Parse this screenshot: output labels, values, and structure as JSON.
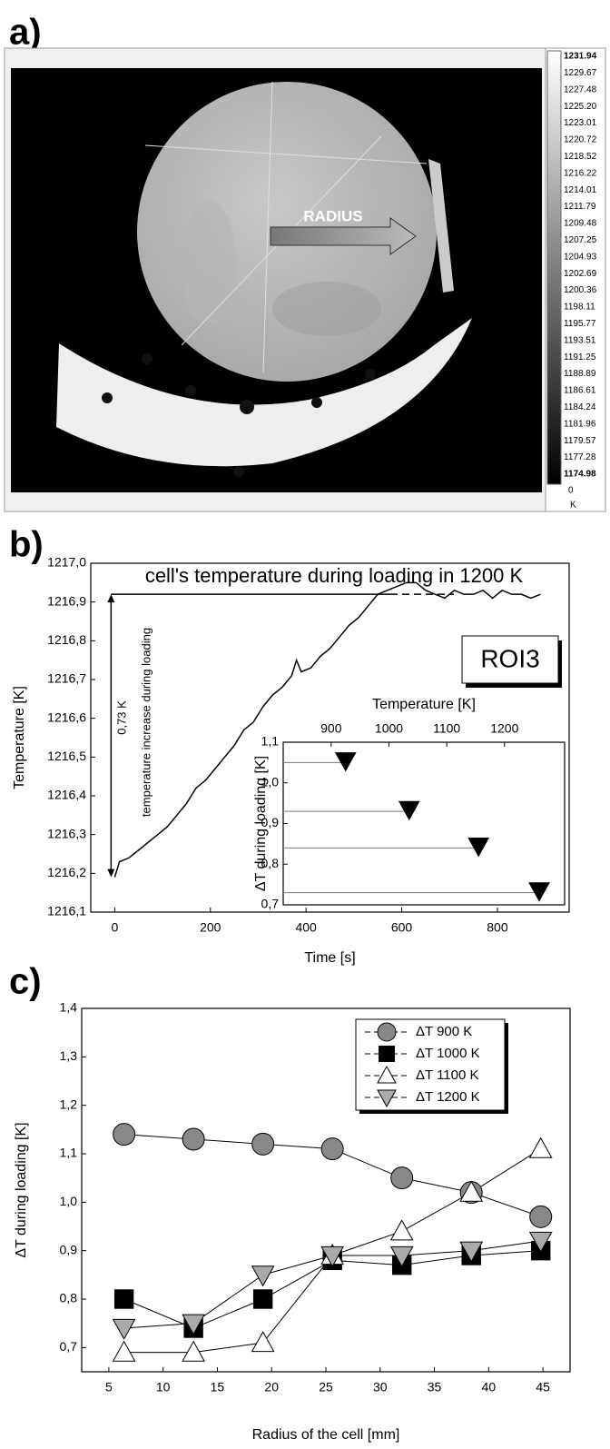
{
  "panel_labels": [
    "a)",
    "b)",
    "c)"
  ],
  "image": {
    "annotation": "RADIUS",
    "colorbar": {
      "labels": [
        "1231.94",
        "1229.67",
        "1227.48",
        "1225.20",
        "1223.01",
        "1220.72",
        "1218.52",
        "1216.22",
        "1214.01",
        "1211.79",
        "1209.48",
        "1207.25",
        "1204.93",
        "1202.69",
        "1200.36",
        "1198.11",
        "1195.77",
        "1193.51",
        "1191.25",
        "1188.89",
        "1186.61",
        "1184.24",
        "1181.96",
        "1179.57",
        "1177.28",
        "1174.98"
      ],
      "extra": "0",
      "unit": "K"
    }
  },
  "chart_data": [
    {
      "type": "line",
      "title": "cell's temperature during loading in 1200 K",
      "x_label": "Time [s]",
      "y_label": "Temperature [K]",
      "x": [
        0,
        10,
        30,
        50,
        70,
        90,
        110,
        130,
        150,
        170,
        190,
        210,
        230,
        250,
        270,
        290,
        310,
        330,
        350,
        370,
        380,
        390,
        410,
        430,
        450,
        470,
        490,
        510,
        530,
        550,
        570,
        590,
        610,
        630,
        650,
        670,
        690,
        710,
        730,
        750,
        770,
        790,
        810,
        830,
        850,
        870,
        890
      ],
      "values": [
        1216.19,
        1216.23,
        1216.24,
        1216.26,
        1216.28,
        1216.3,
        1216.32,
        1216.35,
        1216.38,
        1216.42,
        1216.44,
        1216.47,
        1216.5,
        1216.53,
        1216.57,
        1216.59,
        1216.63,
        1216.66,
        1216.68,
        1216.71,
        1216.75,
        1216.72,
        1216.73,
        1216.76,
        1216.78,
        1216.81,
        1216.84,
        1216.86,
        1216.89,
        1216.92,
        1216.93,
        1216.94,
        1216.95,
        1216.95,
        1216.93,
        1216.92,
        1216.91,
        1216.93,
        1216.92,
        1216.92,
        1216.93,
        1216.91,
        1216.93,
        1216.92,
        1216.92,
        1216.91,
        1216.92
      ],
      "color": "#000000",
      "reference_line": 1216.92,
      "annotations": {
        "roi": "ROI3",
        "delta": "0,73 K",
        "delta_note": "temperature increase during loading"
      },
      "xlim": [
        -50,
        950
      ],
      "xticks": [
        0,
        200,
        400,
        600,
        800
      ],
      "ylim": [
        1216.1,
        1217.0
      ],
      "yticks": [
        {
          "value": 1216.1,
          "label": "1216,1"
        },
        {
          "value": 1216.2,
          "label": "1216,2"
        },
        {
          "value": 1216.3,
          "label": "1216,3"
        },
        {
          "value": 1216.4,
          "label": "1216,4"
        },
        {
          "value": 1216.5,
          "label": "1216,5"
        },
        {
          "value": 1216.6,
          "label": "1216,6"
        },
        {
          "value": 1216.7,
          "label": "1216,7"
        },
        {
          "value": 1216.8,
          "label": "1216,8"
        },
        {
          "value": 1216.9,
          "label": "1216,9"
        },
        {
          "value": 1217.0,
          "label": "1217,0"
        }
      ]
    },
    {
      "type": "scatter",
      "x_label": "Temperature [K]",
      "y_label": "ΔT during loading [K]",
      "x_axis": "top",
      "x": [
        925,
        1035,
        1155,
        1260
      ],
      "values": [
        1.05,
        0.93,
        0.84,
        0.73
      ],
      "marker": "triangle-down",
      "color": "#000000",
      "guide_lines": true,
      "xlim": [
        817,
        1304
      ],
      "xticks": [
        900,
        1000,
        1100,
        1200
      ],
      "ylim": [
        0.7,
        1.1
      ],
      "yticks": [
        {
          "value": 0.7,
          "label": "0,7"
        },
        {
          "value": 0.8,
          "label": "0,8"
        },
        {
          "value": 0.9,
          "label": "0,9"
        },
        {
          "value": 1.0,
          "label": "1,0"
        },
        {
          "value": 1.1,
          "label": "1,1"
        }
      ]
    },
    {
      "type": "line",
      "x_label": "Radius of the cell [mm]",
      "y_label": "ΔT during loading [K]",
      "legend": "upper right",
      "x": [
        6.4,
        12.8,
        19.2,
        25.6,
        32,
        38.4,
        44.8
      ],
      "series": [
        {
          "name": "ΔT 900 K",
          "marker": "circle",
          "color": "#888888",
          "values": [
            1.14,
            1.13,
            1.12,
            1.11,
            1.05,
            1.02,
            0.97
          ]
        },
        {
          "name": "ΔT 1000 K",
          "marker": "square",
          "color": "#000000",
          "values": [
            0.8,
            0.74,
            0.8,
            0.88,
            0.87,
            0.89,
            0.9
          ]
        },
        {
          "name": "ΔT 1100 K",
          "marker": "triangle-up",
          "color": "#ffffff",
          "values": [
            0.69,
            0.69,
            0.71,
            0.89,
            0.94,
            1.02,
            1.11
          ]
        },
        {
          "name": "ΔT 1200 K",
          "marker": "triangle-down",
          "color": "#aaaaaa",
          "values": [
            0.74,
            0.75,
            0.85,
            0.89,
            0.89,
            0.9,
            0.92
          ]
        }
      ],
      "xlim": [
        2.5,
        47.5
      ],
      "xticks": [
        5,
        10,
        15,
        20,
        25,
        30,
        35,
        40,
        45
      ],
      "ylim": [
        0.65,
        1.4
      ],
      "yticks": [
        {
          "value": 0.7,
          "label": "0,7"
        },
        {
          "value": 0.8,
          "label": "0,8"
        },
        {
          "value": 0.9,
          "label": "0,9"
        },
        {
          "value": 1.0,
          "label": "1,0"
        },
        {
          "value": 1.1,
          "label": "1,1"
        },
        {
          "value": 1.2,
          "label": "1,2"
        },
        {
          "value": 1.3,
          "label": "1,3"
        },
        {
          "value": 1.4,
          "label": "1,4"
        }
      ]
    }
  ]
}
